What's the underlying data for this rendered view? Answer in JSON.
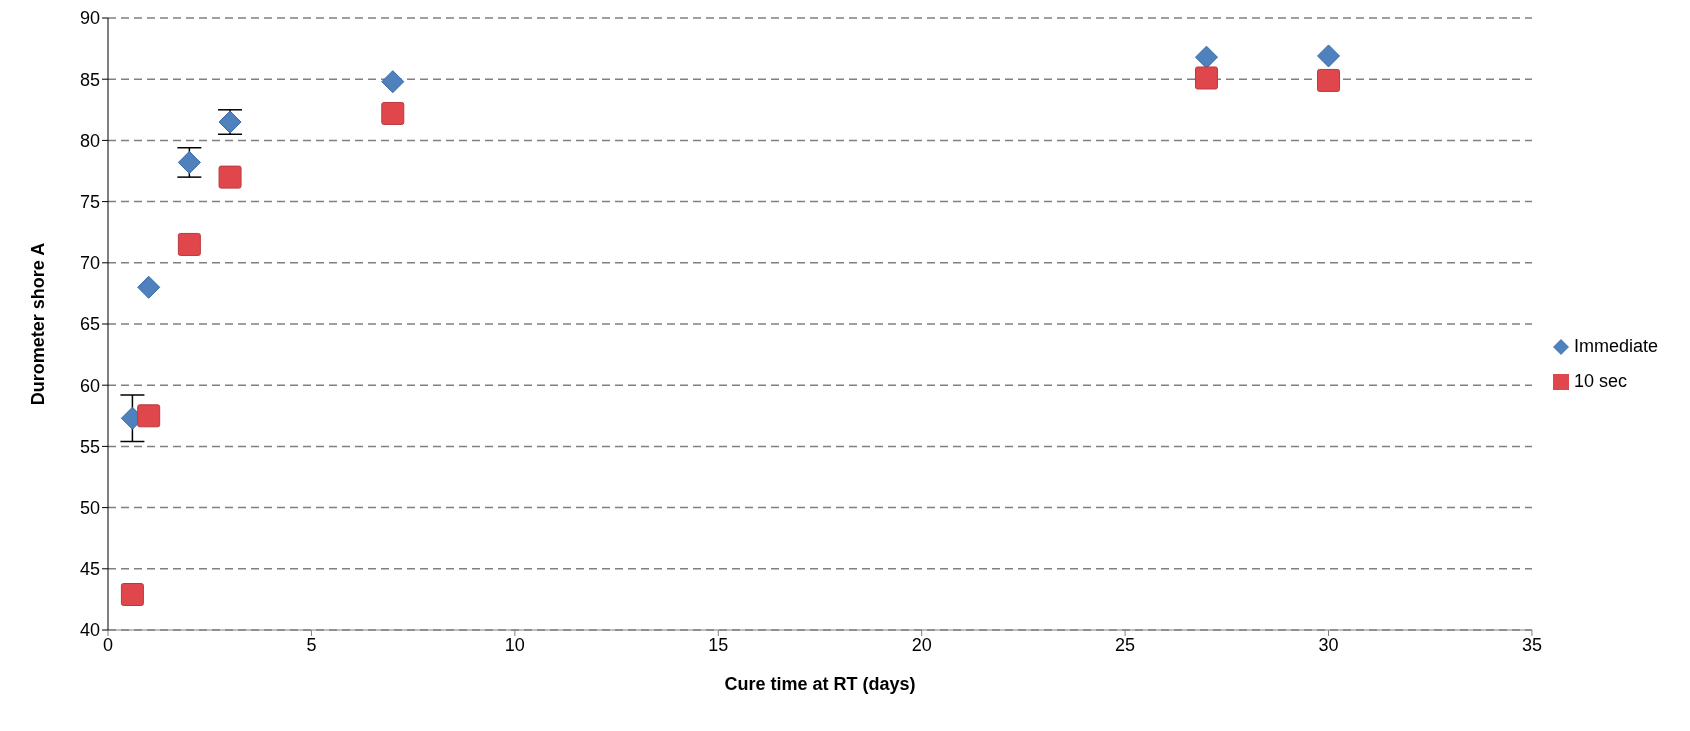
{
  "chart_data": {
    "type": "scatter",
    "xlabel": "Cure time at RT (days)",
    "ylabel": "Durometer shore A",
    "xlim": [
      0,
      35
    ],
    "xticks": [
      0,
      5,
      10,
      15,
      20,
      25,
      30,
      35
    ],
    "ylim": [
      40,
      90
    ],
    "yticks": [
      40,
      45,
      50,
      55,
      60,
      65,
      70,
      75,
      80,
      85,
      90
    ],
    "grid": "y",
    "legend": "right",
    "series": [
      {
        "name": "Immediate",
        "color": "#4f81bd",
        "marker": "diamond",
        "x": [
          0.6,
          1,
          2,
          3,
          7,
          27,
          30
        ],
        "values": [
          57.3,
          68,
          78.2,
          81.5,
          84.8,
          86.8,
          86.9
        ],
        "errors": [
          1.9,
          null,
          1.2,
          1,
          null,
          null,
          null
        ]
      },
      {
        "name": "10 sec",
        "color": "#e0474c",
        "marker": "square",
        "x": [
          0.6,
          1,
          2,
          3,
          7,
          27,
          30
        ],
        "values": [
          42.9,
          57.5,
          71.5,
          77,
          82.2,
          85.1,
          84.9
        ]
      }
    ]
  }
}
